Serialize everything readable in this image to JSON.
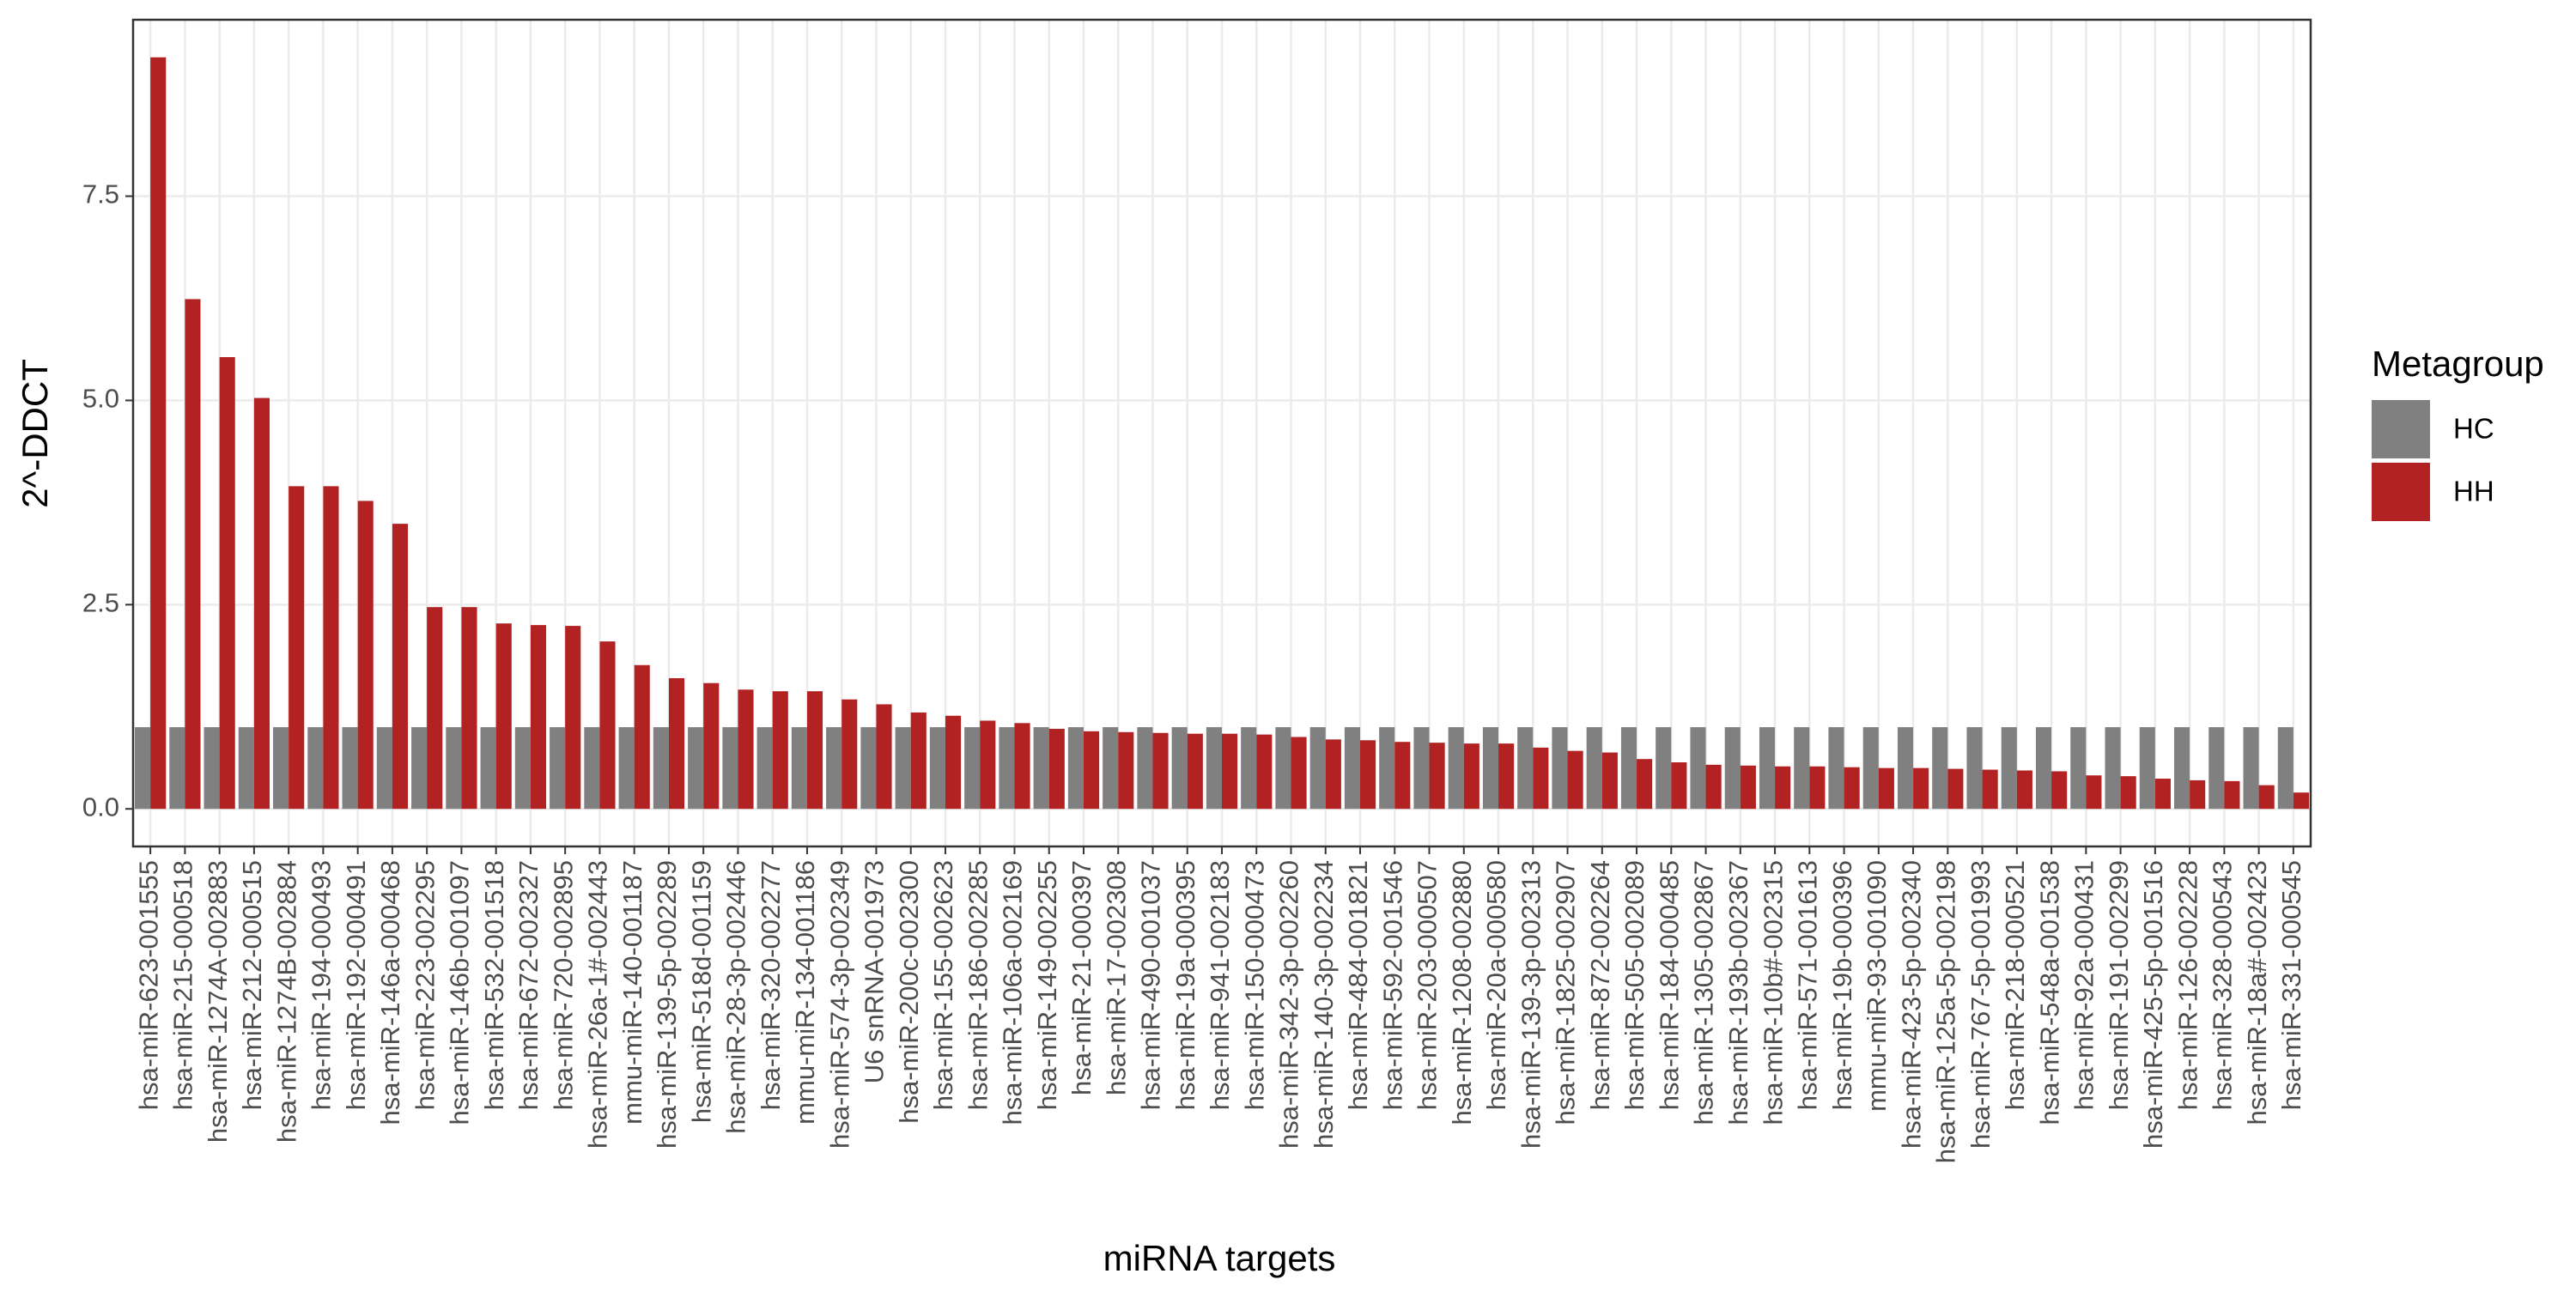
{
  "chart_data": {
    "type": "bar",
    "xlabel": "miRNA targets",
    "ylabel": "2^-DDCT",
    "legend_title": "Metagroup",
    "legend_position": "right",
    "grid": true,
    "ylim": [
      -0.46,
      9.66
    ],
    "yticks": [
      {
        "value": 0,
        "label": "0.0"
      },
      2.5,
      {
        "value": 5,
        "label": "5.0"
      },
      7.5
    ],
    "categories": [
      "hsa-miR-623-001555",
      "hsa-miR-215-000518",
      "hsa-miR-1274A-002883",
      "hsa-miR-212-000515",
      "hsa-miR-1274B-002884",
      "hsa-miR-194-000493",
      "hsa-miR-192-000491",
      "hsa-miR-146a-000468",
      "hsa-miR-223-002295",
      "hsa-miR-146b-001097",
      "hsa-miR-532-001518",
      "hsa-miR-672-002327",
      "hsa-miR-720-002895",
      "hsa-miR-26a-1#-002443",
      "mmu-miR-140-001187",
      "hsa-miR-139-5p-002289",
      "hsa-miR-518d-001159",
      "hsa-miR-28-3p-002446",
      "hsa-miR-320-002277",
      "mmu-miR-134-001186",
      "hsa-miR-574-3p-002349",
      "U6 snRNA-001973",
      "hsa-miR-200c-002300",
      "hsa-miR-155-002623",
      "hsa-miR-186-002285",
      "hsa-miR-106a-002169",
      "hsa-miR-149-002255",
      "hsa-miR-21-000397",
      "hsa-miR-17-002308",
      "hsa-miR-490-001037",
      "hsa-miR-19a-000395",
      "hsa-miR-941-002183",
      "hsa-miR-150-000473",
      "hsa-miR-342-3p-002260",
      "hsa-miR-140-3p-002234",
      "hsa-miR-484-001821",
      "hsa-miR-592-001546",
      "hsa-miR-203-000507",
      "hsa-miR-1208-002880",
      "hsa-miR-20a-000580",
      "hsa-miR-139-3p-002313",
      "hsa-miR-1825-002907",
      "hsa-miR-872-002264",
      "hsa-miR-505-002089",
      "hsa-miR-184-000485",
      "hsa-miR-1305-002867",
      "hsa-miR-193b-002367",
      "hsa-miR-10b#-002315",
      "hsa-miR-571-001613",
      "hsa-miR-19b-000396",
      "mmu-miR-93-001090",
      "hsa-miR-423-5p-002340",
      "hsa-miR-125a-5p-002198",
      "hsa-miR-767-5p-001993",
      "hsa-miR-218-000521",
      "hsa-miR-548a-001538",
      "hsa-miR-92a-000431",
      "hsa-miR-191-002299",
      "hsa-miR-425-5p-001516",
      "hsa-miR-126-002228",
      "hsa-miR-328-000543",
      "hsa-miR-18a#-002423",
      "hsa-miR-331-000545"
    ],
    "series": [
      {
        "name": "HC",
        "color": "#808080",
        "values": [
          1,
          1,
          1,
          1,
          1,
          1,
          1,
          1,
          1,
          1,
          1,
          1,
          1,
          1,
          1,
          1,
          1,
          1,
          1,
          1,
          1,
          1,
          1,
          1,
          1,
          1,
          1,
          1,
          1,
          1,
          1,
          1,
          1,
          1,
          1,
          1,
          1,
          1,
          1,
          1,
          1,
          1,
          1,
          1,
          1,
          1,
          1,
          1,
          1,
          1,
          1,
          1,
          1,
          1,
          1,
          1,
          1,
          1,
          1,
          1,
          1,
          1,
          1
        ]
      },
      {
        "name": "HH",
        "color": "#b22222",
        "values": [
          9.2,
          6.24,
          5.53,
          5.03,
          3.95,
          3.95,
          3.77,
          3.49,
          2.47,
          2.47,
          2.27,
          2.25,
          2.24,
          2.05,
          1.76,
          1.6,
          1.54,
          1.46,
          1.44,
          1.44,
          1.34,
          1.28,
          1.18,
          1.14,
          1.08,
          1.05,
          0.98,
          0.95,
          0.94,
          0.93,
          0.92,
          0.92,
          0.91,
          0.88,
          0.85,
          0.84,
          0.82,
          0.81,
          0.8,
          0.8,
          0.75,
          0.71,
          0.69,
          0.61,
          0.57,
          0.54,
          0.53,
          0.52,
          0.52,
          0.51,
          0.5,
          0.5,
          0.49,
          0.48,
          0.47,
          0.46,
          0.41,
          0.4,
          0.37,
          0.35,
          0.34,
          0.29,
          0.2
        ]
      }
    ]
  }
}
